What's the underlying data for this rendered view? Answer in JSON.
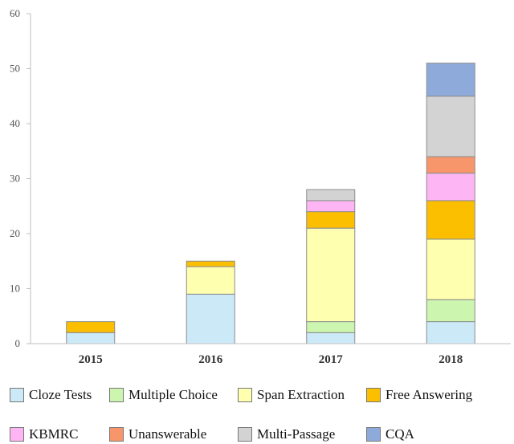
{
  "chart_data": {
    "type": "bar",
    "stacked": true,
    "categories": [
      "2015",
      "2016",
      "2017",
      "2018"
    ],
    "ylim": [
      0,
      60
    ],
    "yticks": [
      "0",
      "10",
      "20",
      "30",
      "40",
      "50",
      "60"
    ],
    "grid": false,
    "legend_position": "bottom",
    "series": [
      {
        "name": "Cloze Tests",
        "color": "#cce9f8",
        "values": [
          2,
          9,
          2,
          4
        ]
      },
      {
        "name": "Multiple Choice",
        "color": "#ccf5b0",
        "values": [
          0,
          0,
          2,
          4
        ]
      },
      {
        "name": "Span Extraction",
        "color": "#ffffb0",
        "values": [
          0,
          5,
          17,
          11
        ]
      },
      {
        "name": "Free Answering",
        "color": "#fbbf00",
        "values": [
          2,
          1,
          3,
          7
        ]
      },
      {
        "name": "KBMRC",
        "color": "#fdb6f3",
        "values": [
          0,
          0,
          2,
          5
        ]
      },
      {
        "name": "Unanswerable",
        "color": "#f7956b",
        "values": [
          0,
          0,
          0,
          3
        ]
      },
      {
        "name": "Multi-Passage",
        "color": "#d3d3d3",
        "values": [
          0,
          0,
          2,
          11
        ]
      },
      {
        "name": "CQA",
        "color": "#8eaadb",
        "values": [
          0,
          0,
          0,
          6
        ]
      }
    ]
  }
}
